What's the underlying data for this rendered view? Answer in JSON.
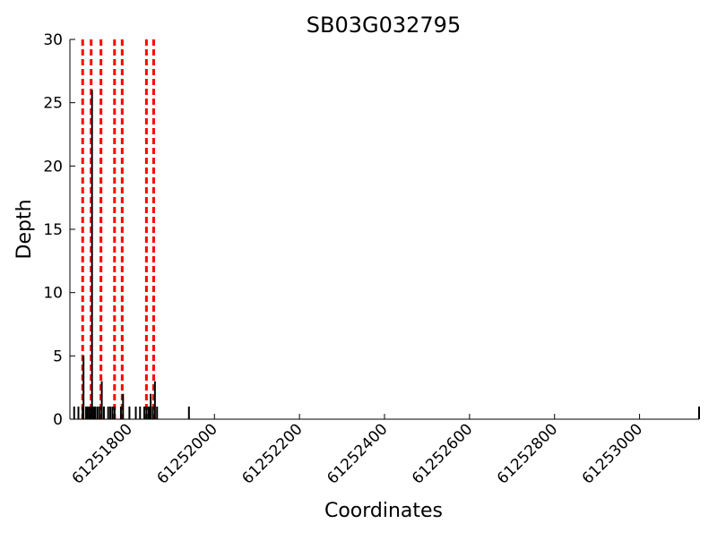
{
  "chart_data": {
    "type": "bar",
    "title": "SB03G032795",
    "xlabel": "Coordinates",
    "ylabel": "Depth",
    "xlim": [
      61251660,
      61253140
    ],
    "ylim": [
      0,
      30
    ],
    "x_ticks": [
      61251800,
      61252000,
      61252200,
      61252400,
      61252600,
      61252800,
      61253000
    ],
    "x_tick_labels": [
      "61251800",
      "61252000",
      "61252200",
      "61252400",
      "61252600",
      "61252800",
      "61253000"
    ],
    "y_ticks": [
      0,
      5,
      10,
      15,
      20,
      25,
      30
    ],
    "y_tick_labels": [
      "0",
      "5",
      "10",
      "15",
      "20",
      "25",
      "30"
    ],
    "grid": false,
    "series": [
      {
        "color": "#000000",
        "points": [
          {
            "x": 61251670,
            "y": 1
          },
          {
            "x": 61251680,
            "y": 1
          },
          {
            "x": 61251690,
            "y": 1
          },
          {
            "x": 61251692,
            "y": 5
          },
          {
            "x": 61251698,
            "y": 1
          },
          {
            "x": 61251702,
            "y": 1
          },
          {
            "x": 61251706,
            "y": 1
          },
          {
            "x": 61251710,
            "y": 1
          },
          {
            "x": 61251712,
            "y": 26
          },
          {
            "x": 61251716,
            "y": 1
          },
          {
            "x": 61251720,
            "y": 1
          },
          {
            "x": 61251725,
            "y": 1
          },
          {
            "x": 61251730,
            "y": 1
          },
          {
            "x": 61251735,
            "y": 3
          },
          {
            "x": 61251740,
            "y": 1
          },
          {
            "x": 61251750,
            "y": 1
          },
          {
            "x": 61251755,
            "y": 1
          },
          {
            "x": 61251760,
            "y": 1
          },
          {
            "x": 61251765,
            "y": 1
          },
          {
            "x": 61251780,
            "y": 1
          },
          {
            "x": 61251785,
            "y": 2
          },
          {
            "x": 61251800,
            "y": 1
          },
          {
            "x": 61251815,
            "y": 1
          },
          {
            "x": 61251825,
            "y": 1
          },
          {
            "x": 61251835,
            "y": 1
          },
          {
            "x": 61251840,
            "y": 1
          },
          {
            "x": 61251845,
            "y": 1
          },
          {
            "x": 61251848,
            "y": 1
          },
          {
            "x": 61251850,
            "y": 2
          },
          {
            "x": 61251855,
            "y": 1
          },
          {
            "x": 61251860,
            "y": 3
          },
          {
            "x": 61251865,
            "y": 1
          },
          {
            "x": 61251940,
            "y": 1
          },
          {
            "x": 61253140,
            "y": 1
          }
        ]
      }
    ],
    "markers": {
      "color": "#ff0000",
      "style": "dashed",
      "x": [
        61251690,
        61251710,
        61251733,
        61251765,
        61251783,
        61251840,
        61251857
      ]
    }
  }
}
